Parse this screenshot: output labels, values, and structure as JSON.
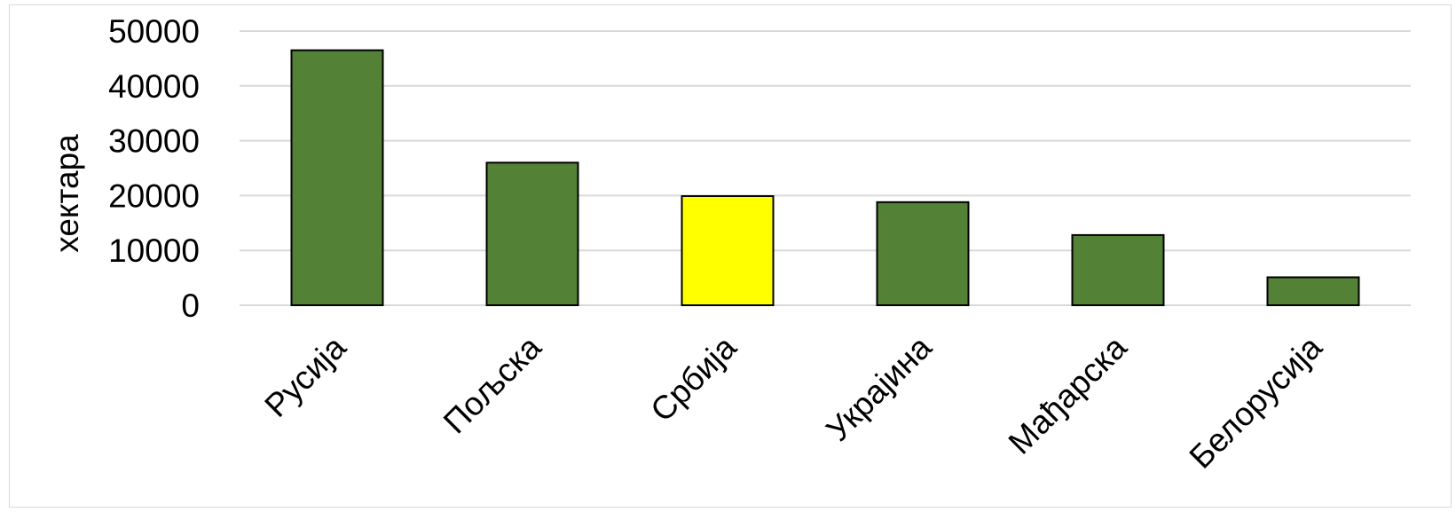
{
  "chart_data": {
    "type": "bar",
    "title": "",
    "xlabel": "",
    "ylabel": "хектара",
    "categories": [
      "Русија",
      "Пољска",
      "Србија",
      "Украјина",
      "Мађарска",
      "Белорусија"
    ],
    "values": [
      46500,
      26000,
      19900,
      18800,
      12800,
      5100
    ],
    "ylim": [
      0,
      50000
    ],
    "yticks": [
      "0",
      "10000",
      "20000",
      "30000",
      "40000",
      "50000"
    ],
    "grid": true,
    "legend": "none",
    "colors": {
      "default": "#538135",
      "highlight": "#ffff00",
      "highlight_category": "Србија",
      "gridline": "#d9d9d9",
      "outline": "#000000"
    }
  }
}
